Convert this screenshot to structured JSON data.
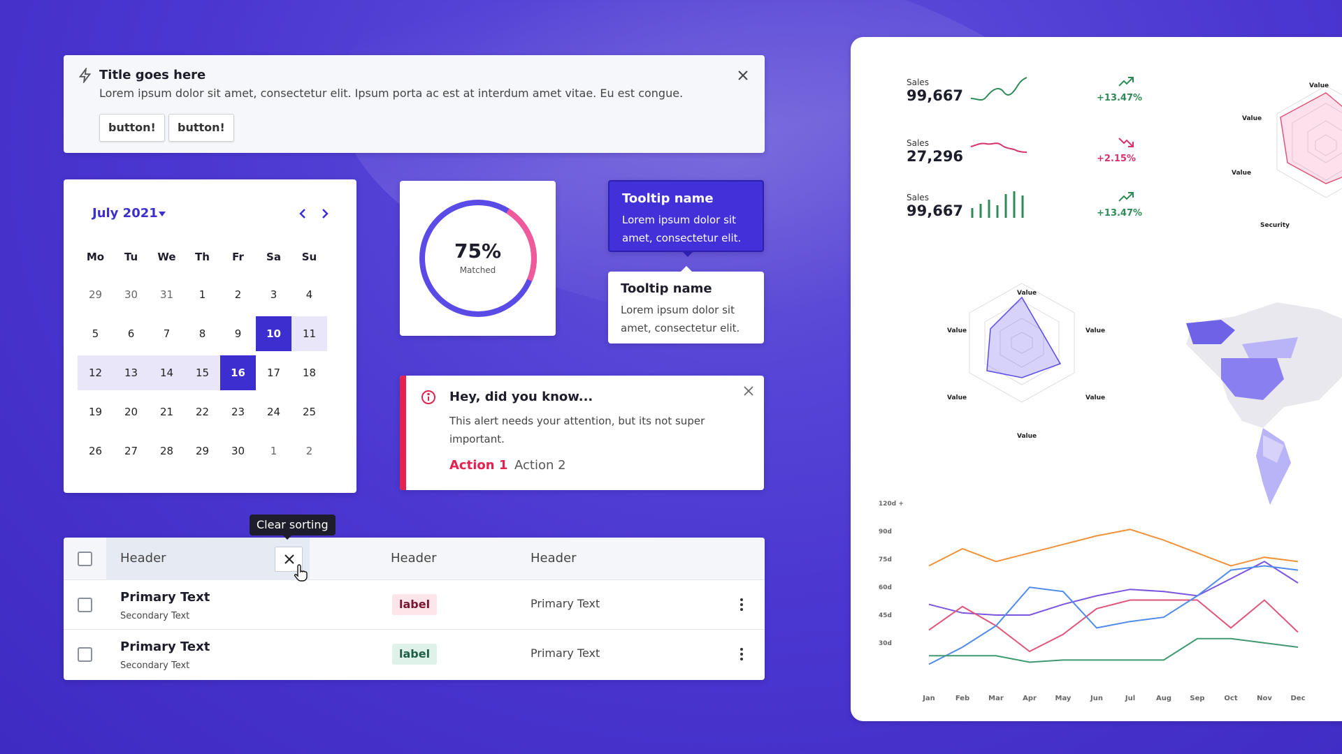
{
  "notification": {
    "title": "Title goes here",
    "body": "Lorem ipsum dolor sit amet, consectetur elit. Ipsum porta ac est at interdum amet vitae. Eu est congue.",
    "buttons": [
      "button!",
      "button!"
    ]
  },
  "calendar": {
    "month": "July 2021",
    "weekdays": [
      "Mo",
      "Tu",
      "We",
      "Th",
      "Fr",
      "Sa",
      "Su"
    ],
    "weeks": [
      [
        "29",
        "30",
        "31",
        "1",
        "2",
        "3",
        "4"
      ],
      [
        "5",
        "6",
        "7",
        "8",
        "9",
        "10",
        "11"
      ],
      [
        "12",
        "13",
        "14",
        "15",
        "16",
        "17",
        "18"
      ],
      [
        "19",
        "20",
        "21",
        "22",
        "23",
        "24",
        "25"
      ],
      [
        "26",
        "27",
        "28",
        "29",
        "30",
        "1",
        "2"
      ]
    ],
    "range_start": "10",
    "range_end": "16"
  },
  "donut": {
    "percent": "75%",
    "label": "Matched",
    "value": 0.75
  },
  "tooltips": [
    {
      "title": "Tooltip name",
      "body": "Lorem ipsum dolor sit amet, consectetur elit."
    },
    {
      "title": "Tooltip name",
      "body": "Lorem ipsum dolor sit amet, consectetur elit."
    }
  ],
  "alert": {
    "title": "Hey, did you know...",
    "body": "This alert needs your attention, but its not super important.",
    "action1": "Action 1",
    "action2": "Action 2"
  },
  "table": {
    "sort_tooltip": "Clear sorting",
    "headers": [
      "Header",
      "Header",
      "Header"
    ],
    "rows": [
      {
        "primary": "Primary Text",
        "secondary": "Secondary Text",
        "label": "label",
        "text": "Primary Text",
        "label_style": "red"
      },
      {
        "primary": "Primary Text",
        "secondary": "Secondary Text",
        "label": "label",
        "text": "Primary Text",
        "label_style": "green"
      }
    ]
  },
  "dashboard": {
    "kpis": [
      {
        "label": "Sales",
        "value": "99,667",
        "delta": "+13.47%",
        "trend": "up",
        "color": "#2e8b57"
      },
      {
        "label": "Sales",
        "value": "27,296",
        "delta": "+2.15%",
        "trend": "down",
        "color": "#d6336c"
      },
      {
        "label": "Sales",
        "value": "99,667",
        "delta": "+13.47%",
        "trend": "up",
        "color": "#2e8b57"
      }
    ],
    "radar_top": {
      "labels": [
        "Value",
        "Value",
        "Value",
        "Security"
      ]
    },
    "radar_mid": {
      "labels": [
        "Value",
        "Value",
        "Value",
        "Value",
        "Value",
        "Value"
      ]
    }
  },
  "chart_data": {
    "type": "line",
    "categories": [
      "Jan",
      "Feb",
      "Mar",
      "Apr",
      "May",
      "Jun",
      "Jul",
      "Aug",
      "Sep",
      "Oct",
      "Nov",
      "Dec"
    ],
    "yticks": [
      "120d +",
      "90d",
      "75d",
      "60d",
      "45d",
      "30d"
    ],
    "series": [
      {
        "color": "#f0923a",
        "values": [
          78,
          86,
          80,
          84,
          88,
          92,
          95,
          90,
          84,
          78,
          82,
          80
        ]
      },
      {
        "color": "#7a55e0",
        "values": [
          60,
          56,
          55,
          55,
          60,
          64,
          67,
          66,
          64,
          72,
          80,
          70
        ]
      },
      {
        "color": "#e0557a",
        "values": [
          48,
          59,
          50,
          38,
          46,
          58,
          62,
          62,
          62,
          49,
          62,
          47
        ]
      },
      {
        "color": "#4f8be8",
        "values": [
          32,
          40,
          50,
          68,
          66,
          49,
          52,
          54,
          64,
          76,
          78,
          76
        ]
      },
      {
        "color": "#3f9970",
        "values": [
          36,
          36,
          36,
          33,
          34,
          34,
          34,
          34,
          44,
          44,
          42,
          40
        ]
      }
    ]
  }
}
